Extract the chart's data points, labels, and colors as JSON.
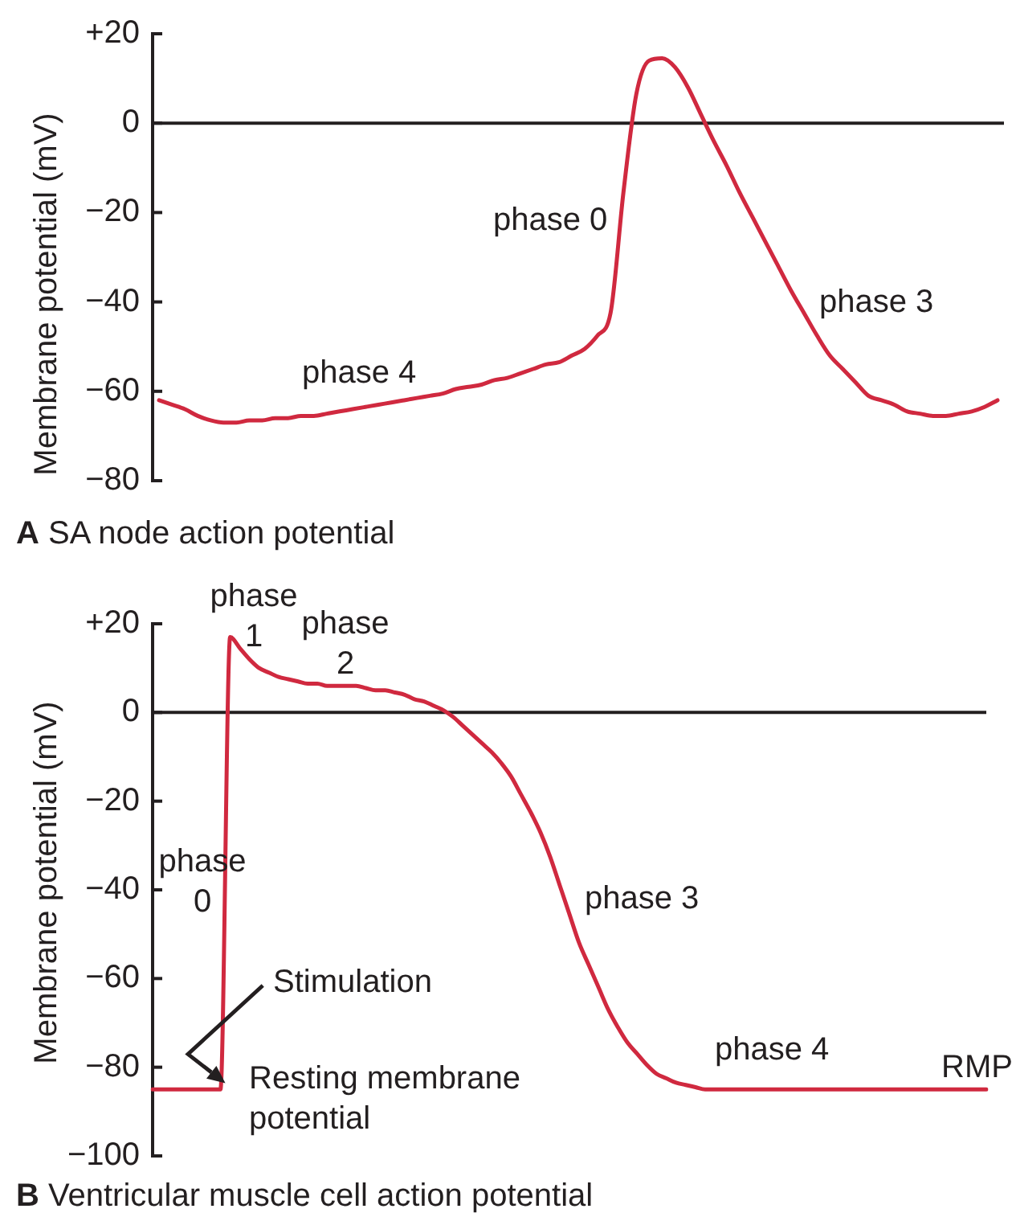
{
  "chart_data": [
    {
      "type": "line",
      "title": "A SA node action potential",
      "ylabel": "Membrane potential (mV)",
      "categories": [
        null,
        null,
        null,
        null,
        null,
        null,
        null,
        null,
        null,
        null,
        null,
        null,
        null,
        null,
        null,
        null,
        null,
        null,
        null,
        null,
        null,
        null,
        null,
        null,
        null,
        null,
        null,
        null,
        null,
        null,
        null,
        null,
        null,
        null,
        null,
        null,
        null,
        null,
        null,
        null,
        null,
        null,
        null,
        null,
        null,
        null,
        null,
        null,
        null,
        null,
        null,
        null,
        null,
        null,
        null,
        null,
        null,
        null,
        null,
        null,
        null,
        null,
        null,
        null,
        null,
        null
      ],
      "values": [
        -62,
        -63,
        -64,
        -65.5,
        -66.5,
        -67,
        -67,
        -66.5,
        -66.5,
        -66,
        -66,
        -65.5,
        -65.5,
        -65,
        -64.5,
        -64,
        -63.5,
        -63,
        -62.5,
        -62,
        -61.5,
        -61,
        -60.5,
        -59.5,
        -59,
        -58.5,
        -57.5,
        -57,
        -56,
        -55,
        -54,
        -53.5,
        -52,
        -50.5,
        -47.5,
        -42.5,
        -15.5,
        6.5,
        14,
        14.5,
        12.5,
        8,
        2,
        -4,
        -9.5,
        -15.5,
        -21,
        -26.5,
        -32,
        -37.5,
        -42.5,
        -47.5,
        -52,
        -55,
        -58,
        -61,
        -62,
        -63,
        -64.5,
        -65,
        -65.5,
        -65.5,
        -65,
        -64.5,
        -63.5,
        -62
      ],
      "color": "#d0293f",
      "marker": "none",
      "line_style": "solid",
      "ylim": [
        -80,
        20
      ],
      "yticks": [
        {
          "value": 20,
          "label": "+20"
        },
        0,
        {
          "value": -20,
          "label": "−20"
        },
        {
          "value": -40,
          "label": "−40"
        },
        {
          "value": -60,
          "label": "−60"
        },
        {
          "value": -80,
          "label": "−80"
        }
      ],
      "tick_labels": "y",
      "ref_lines": [
        {
          "axis": "y",
          "value": 0,
          "color": "#231f20"
        }
      ],
      "annotations": [
        "phase 4",
        "phase 0",
        "phase 3"
      ]
    },
    {
      "type": "line",
      "title": "B Ventricular muscle cell action potential",
      "ylabel": "Membrane potential (mV)",
      "categories": [
        null,
        null,
        null,
        null,
        null,
        null,
        null,
        null,
        null,
        null,
        null,
        null,
        null,
        null,
        null,
        null,
        null,
        null,
        null,
        null,
        null,
        null,
        null,
        null,
        null,
        null,
        null,
        null,
        null,
        null,
        null,
        null,
        null,
        null,
        null,
        null,
        null,
        null,
        null,
        null,
        null,
        null,
        null,
        null,
        null,
        null,
        null,
        null,
        null,
        null,
        null,
        null,
        null,
        null,
        null,
        null,
        null,
        null,
        null,
        null,
        null,
        null,
        null,
        null,
        null,
        null,
        null,
        null,
        null,
        null,
        null,
        null,
        null,
        null,
        null,
        null,
        null,
        null,
        null,
        null,
        null,
        null,
        null,
        null,
        null,
        null,
        null
      ],
      "values": [
        -85,
        -85,
        -85,
        -85,
        -85,
        -85,
        -85,
        -85,
        17,
        14.5,
        12,
        10,
        9,
        8,
        7.5,
        7,
        6.5,
        6.5,
        6,
        6,
        6,
        6,
        5.5,
        5,
        5,
        4.5,
        4,
        3,
        2.5,
        1.5,
        0.5,
        -1,
        -3,
        -5,
        -7,
        -9,
        -11.5,
        -14.5,
        -18.5,
        -22.5,
        -27,
        -32.5,
        -39,
        -45.5,
        -52,
        -57,
        -62,
        -67,
        -71,
        -74.5,
        -77,
        -79.5,
        -81.5,
        -82.5,
        -83.5,
        -84,
        -84.5,
        -85,
        -85,
        -85,
        -85,
        -85,
        -85,
        -85,
        -85,
        -85,
        -85,
        -85,
        -85,
        -85,
        -85,
        -85,
        -85,
        -85,
        -85,
        -85,
        -85,
        -85,
        -85,
        -85,
        -85,
        -85,
        -85,
        -85,
        -85,
        -85,
        -85
      ],
      "color": "#d0293f",
      "marker": "none",
      "line_style": "solid",
      "ylim": [
        -100,
        20
      ],
      "yticks": [
        {
          "value": 20,
          "label": "+20"
        },
        0,
        {
          "value": -20,
          "label": "−20"
        },
        {
          "value": -40,
          "label": "−40"
        },
        {
          "value": -60,
          "label": "−60"
        },
        {
          "value": -80,
          "label": "−80"
        },
        {
          "value": -100,
          "label": "−100"
        }
      ],
      "tick_labels": "y",
      "ref_lines": [
        {
          "axis": "y",
          "value": 0,
          "color": "#231f20"
        }
      ],
      "annotations": [
        "phase 1",
        "phase 2",
        "phase 0",
        "phase 3",
        "Stimulation",
        "phase 4",
        "RMP",
        "Resting membrane potential"
      ]
    }
  ]
}
